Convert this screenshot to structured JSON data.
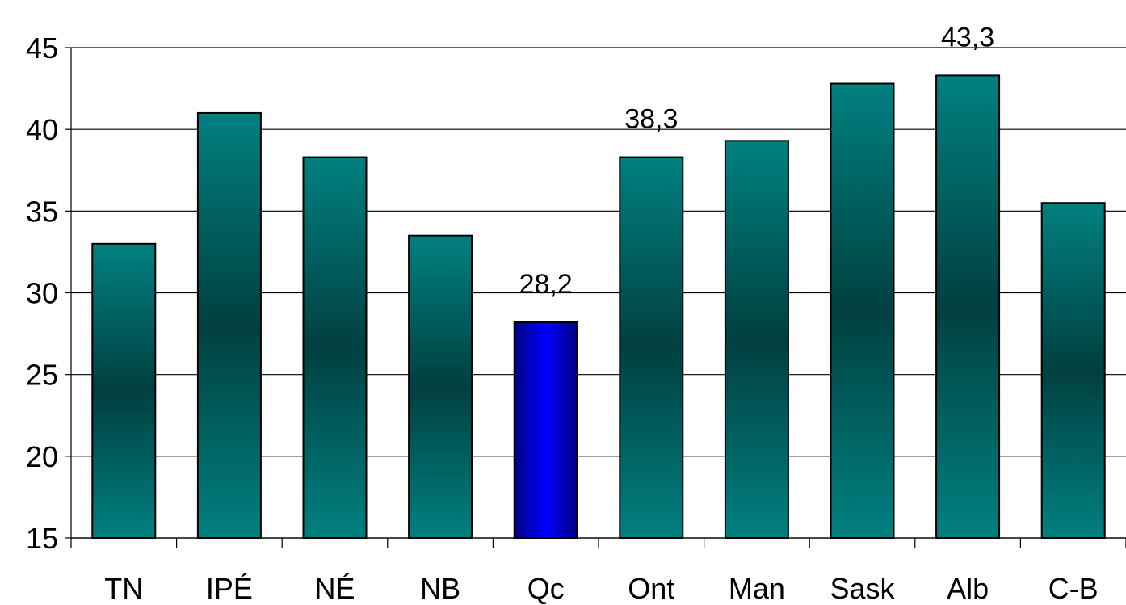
{
  "chart_data": {
    "type": "bar",
    "categories": [
      "TN",
      "IPÉ",
      "NÉ",
      "NB",
      "Qc",
      "Ont",
      "Man",
      "Sask",
      "Alb",
      "C-B"
    ],
    "values": [
      33.0,
      41.0,
      38.3,
      33.5,
      28.2,
      38.3,
      39.3,
      42.8,
      43.3,
      35.5
    ],
    "data_labels": [
      "",
      "",
      "",
      "",
      "28,2",
      "38,3",
      "",
      "",
      "43,3",
      ""
    ],
    "highlight_index": 4,
    "ylim": [
      15,
      45
    ],
    "yticks": [
      "15",
      "20",
      "25",
      "30",
      "35",
      "40",
      "45"
    ],
    "ytick_values": [
      15,
      20,
      25,
      30,
      35,
      40,
      45
    ],
    "grid": true,
    "legend": "none",
    "colors": {
      "bar_light": "#008080",
      "bar_dark": "#004040",
      "highlight_light": "#0000ff",
      "highlight_dark": "#000080",
      "grid": "#000000",
      "axis": "#000000",
      "text": "#000000"
    },
    "title": "",
    "xlabel": "",
    "ylabel": ""
  }
}
